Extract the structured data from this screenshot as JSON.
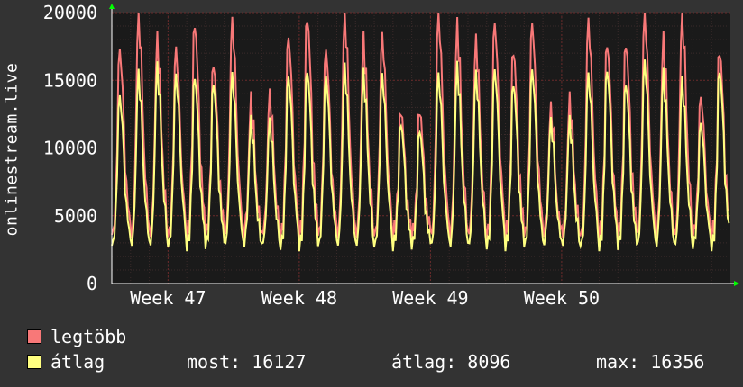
{
  "chart_data": {
    "type": "line",
    "ylabel": "onlinestream.live",
    "ylim": [
      0,
      20000
    ],
    "yticks": [
      0,
      5000,
      10000,
      15000,
      20000
    ],
    "xticks": [
      "Week 47",
      "Week 48",
      "Week 49",
      "Week 50"
    ],
    "grid": true,
    "legend_position": "bottom",
    "x_unit": "days (Week 46 Sun → Week 50 Sun, approx.)",
    "series": [
      {
        "name": "legtöbb",
        "color": "#f87878",
        "daily_peaks": [
          17500,
          20000,
          18000,
          17500,
          19500,
          16500,
          19500,
          13500,
          14000,
          18500,
          20000,
          17500,
          20000,
          18000,
          18500,
          13000,
          13000,
          20000,
          19000,
          18000,
          19500,
          17500,
          19500,
          13000,
          13500,
          19500,
          18000,
          18000,
          20000,
          18000,
          20000,
          14000,
          17500
        ]
      },
      {
        "name": "átlag",
        "color": "#ffff80",
        "daily_peaks": [
          14000,
          15500,
          16000,
          15500,
          15500,
          15000,
          15500,
          12000,
          12000,
          15500,
          16000,
          15500,
          16000,
          15500,
          15500,
          12000,
          11500,
          15500,
          16000,
          15500,
          16000,
          15000,
          16000,
          12000,
          12000,
          15500,
          16000,
          15000,
          16500,
          15500,
          15000,
          12000,
          16000
        ]
      }
    ]
  },
  "legend": {
    "max_label": "legtöbb",
    "avg_label": "átlag",
    "stats": {
      "most": "most: 16127",
      "atlag": "átlag: 8096",
      "max": "max: 16356"
    }
  },
  "colors": {
    "background": "#333333",
    "plot_background": "#1a1a1a",
    "grid": "#4a1e1e",
    "arrow": "#00ff00"
  }
}
